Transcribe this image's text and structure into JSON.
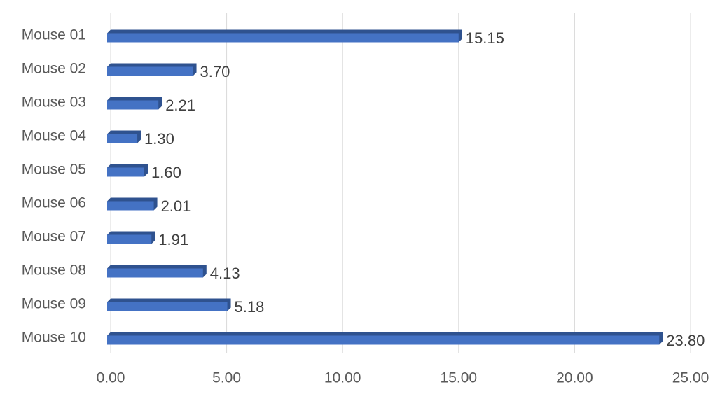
{
  "chart_data": {
    "type": "bar",
    "orientation": "horizontal",
    "categories": [
      "Mouse 01",
      "Mouse 02",
      "Mouse 03",
      "Mouse 04",
      "Mouse 05",
      "Mouse 06",
      "Mouse 07",
      "Mouse 08",
      "Mouse 09",
      "Mouse 10"
    ],
    "values": [
      15.15,
      3.7,
      2.21,
      1.3,
      1.6,
      2.01,
      1.91,
      4.13,
      5.18,
      23.8
    ],
    "value_labels": [
      "15.15",
      "3.70",
      "2.21",
      "1.30",
      "1.60",
      "2.01",
      "1.91",
      "4.13",
      "5.18",
      "23.80"
    ],
    "color": "#4472c4",
    "xlim": [
      0,
      25
    ],
    "xticks": [
      {
        "value": 0,
        "label": "0.00"
      },
      {
        "value": 5,
        "label": "5.00"
      },
      {
        "value": 10,
        "label": "10.00"
      },
      {
        "value": 15,
        "label": "15.00"
      },
      {
        "value": 20,
        "label": "20.00"
      },
      {
        "value": 25,
        "label": "25.00"
      }
    ],
    "grid": true
  }
}
